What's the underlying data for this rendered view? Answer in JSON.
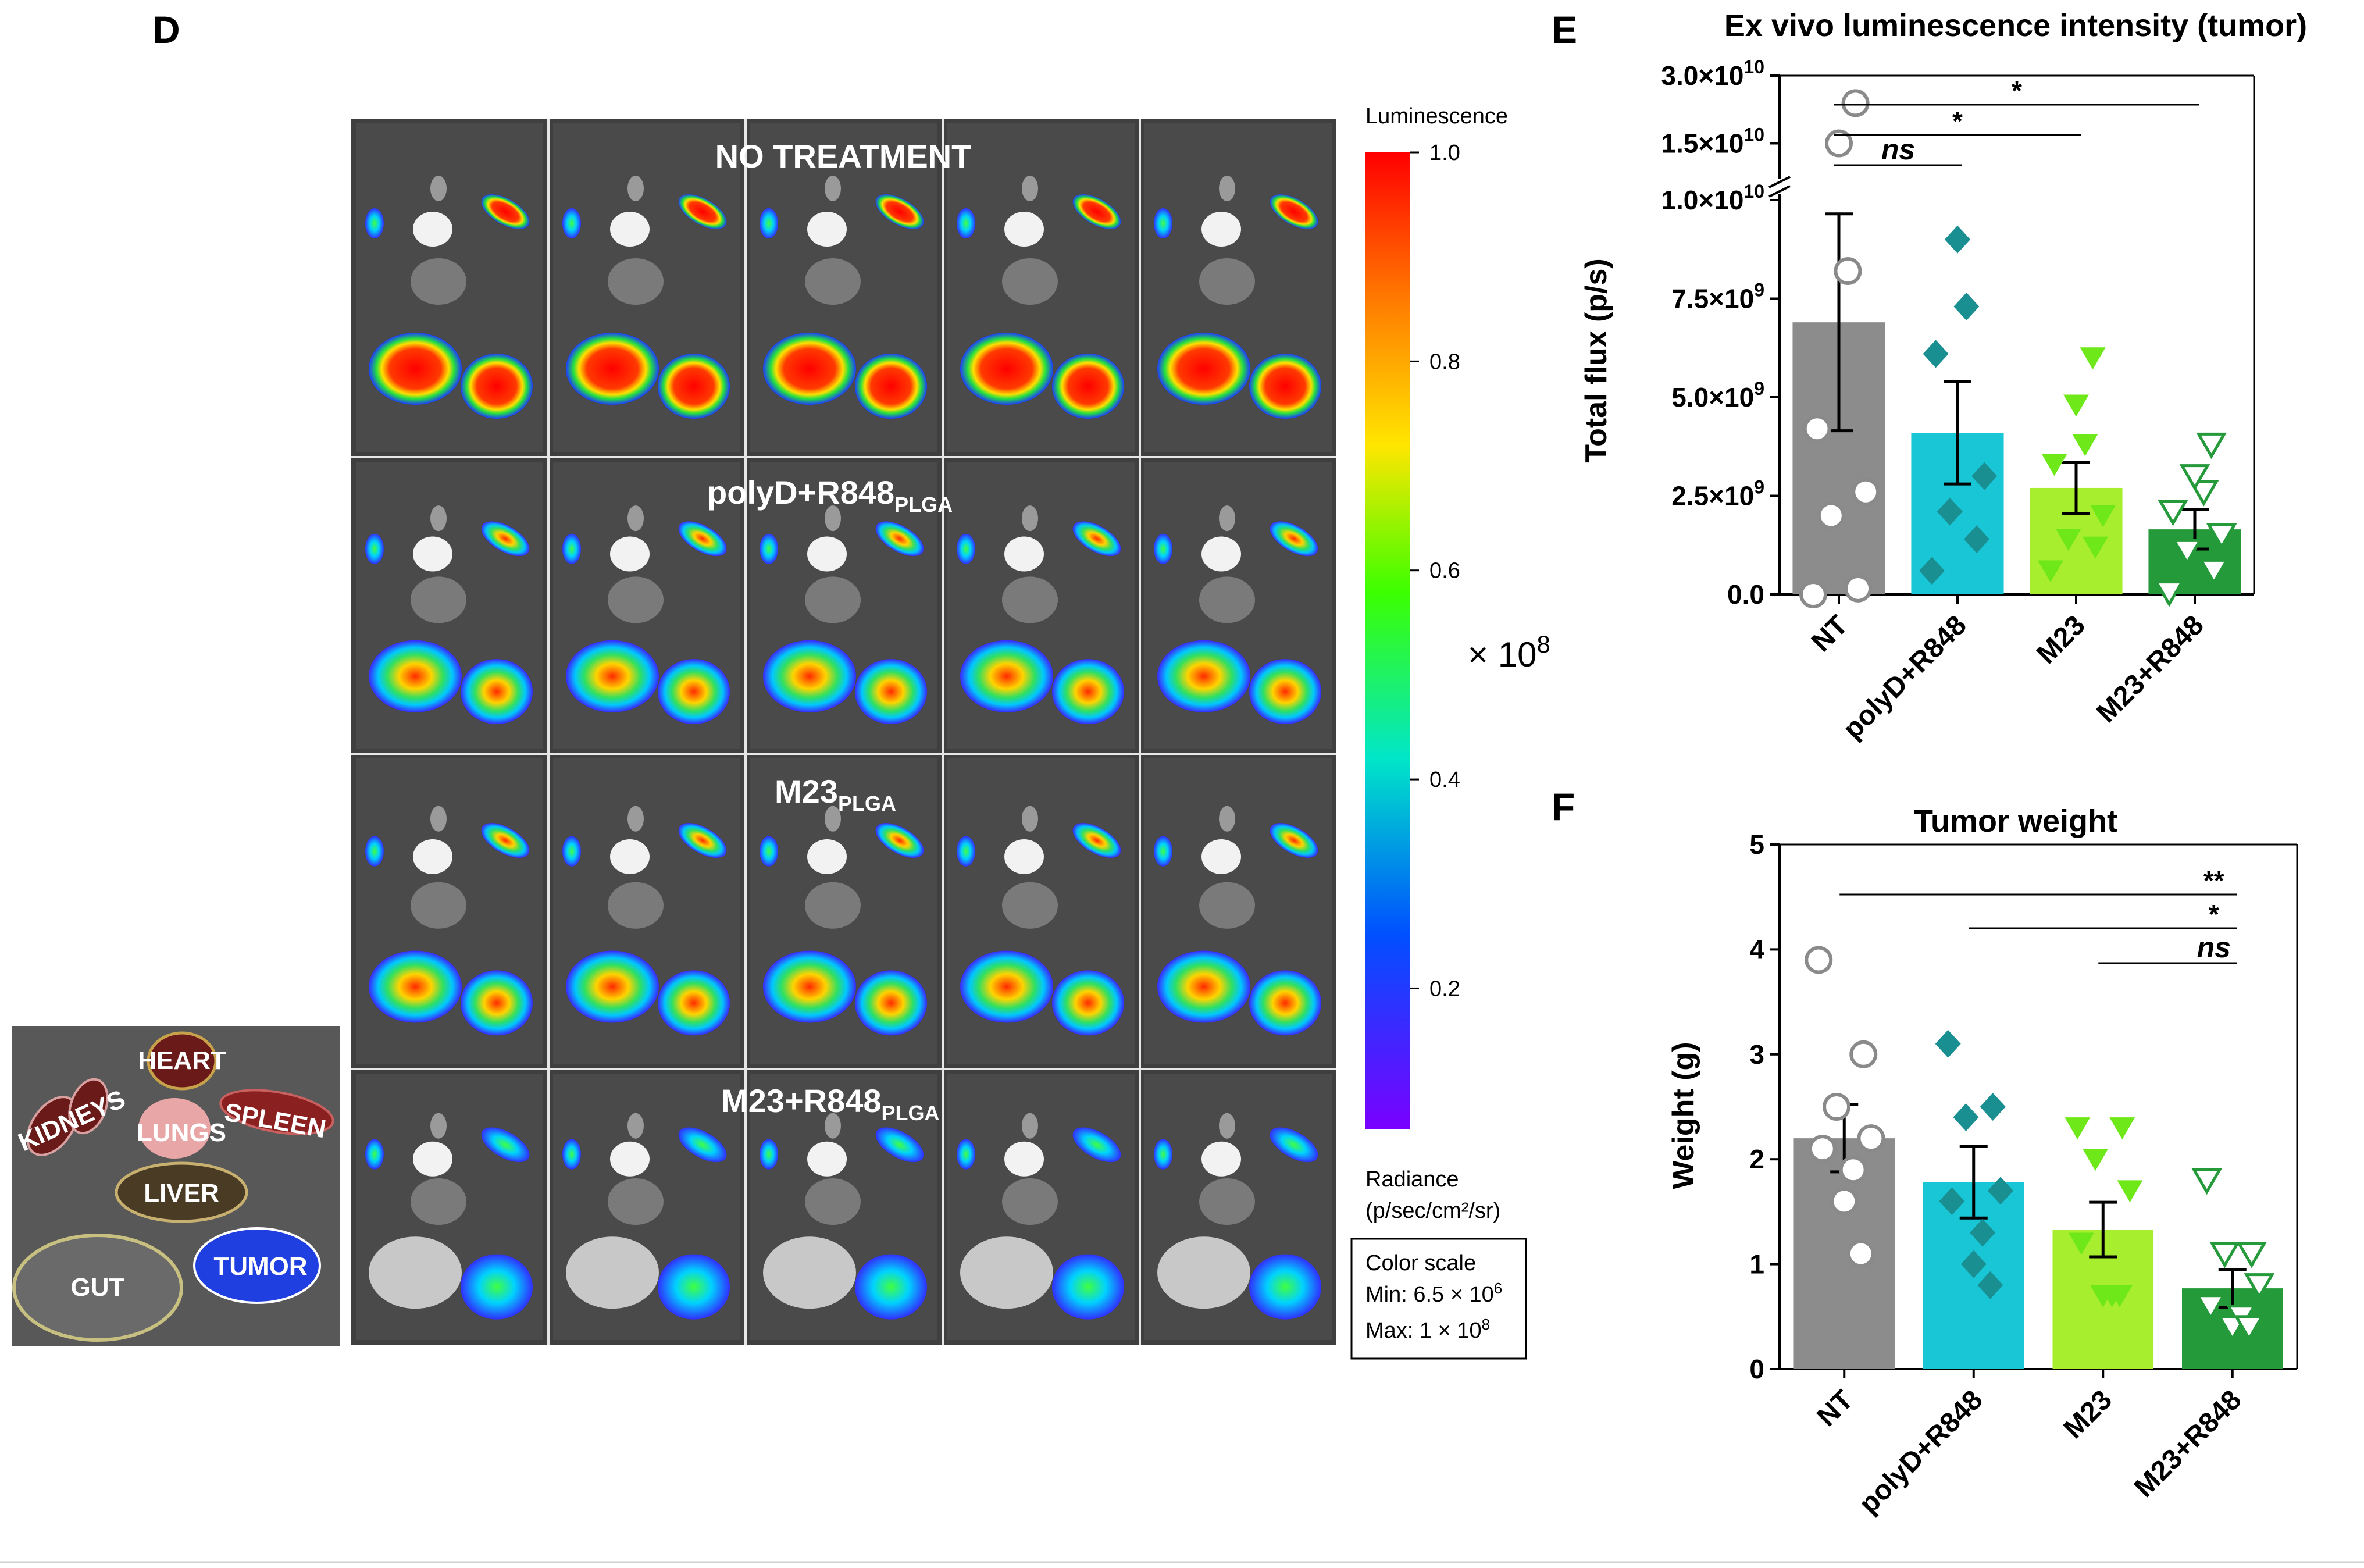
{
  "panels": {
    "d": "D",
    "e": "E",
    "f": "F"
  },
  "imaging": {
    "rows": [
      {
        "title": "NO TREATMENT",
        "title_main": "NO TREATMENT",
        "title_sub": ""
      },
      {
        "title": "polyD+R848PLGA",
        "title_main": "polyD+R848",
        "title_sub": "PLGA"
      },
      {
        "title": "M23PLGA",
        "title_main": "M23",
        "title_sub": "PLGA"
      },
      {
        "title": "M23+R848PLGA",
        "title_main": "M23+R848",
        "title_sub": "PLGA"
      }
    ],
    "scale": {
      "title": "Luminescence",
      "ticks": [
        "1.0",
        "0.8",
        "0.6",
        "0.4",
        "0.2"
      ],
      "multiplier": "× 10",
      "multiplier_exp": "8",
      "units_line1": "Radiance",
      "units_line2": "(p/sec/cm²/sr)",
      "box_title": "Color scale",
      "box_min": "Min: 6.5 × 10",
      "box_min_exp": "6",
      "box_max": "Max: 1 × 10",
      "box_max_exp": "8"
    }
  },
  "legend": {
    "heart": "HEART",
    "kidneys": "KIDNEYS",
    "lungs": "LUNGS",
    "spleen": "SPLEEN",
    "liver": "LIVER",
    "gut": "GUT",
    "tumor": "TUMOR"
  },
  "chart_data": [
    {
      "type": "bar",
      "title": "Ex vivo luminescence intensity (tumor)",
      "ylabel": "Total flux (p/s)",
      "xlabel": "",
      "categories": [
        "NT",
        "polyD+R848",
        "M23",
        "M23+R848"
      ],
      "means": [
        6900000000.0,
        4100000000.0,
        2700000000.0,
        1650000000.0
      ],
      "sem": [
        2750000000.0,
        1300000000.0,
        650000000.0,
        500000000.0
      ],
      "points": [
        [
          0,
          150000000.0,
          2000000000.0,
          2600000000.0,
          4200000000.0,
          8200000000.0,
          15000000000.0,
          23000000000.0
        ],
        [
          600000000.0,
          1400000000.0,
          2100000000.0,
          3000000000.0,
          6100000000.0,
          7300000000.0,
          9000000000.0
        ],
        [
          600000000.0,
          1200000000.0,
          1400000000.0,
          2000000000.0,
          3300000000.0,
          3800000000.0,
          4800000000.0,
          6000000000.0
        ],
        [
          50000000.0,
          600000000.0,
          1100000000.0,
          1500000000.0,
          2100000000.0,
          2600000000.0,
          3000000000.0,
          3800000000.0
        ]
      ],
      "y_ticks": [
        "0.0",
        "2.5×10",
        "5.0×10",
        "7.5×10",
        "1.0×10",
        "1.5×10",
        "3.0×10"
      ],
      "y_tick_exps": [
        "",
        "9",
        "9",
        "9",
        "10",
        "10",
        "10"
      ],
      "ylim_lower": [
        0,
        10000000000.0
      ],
      "ylim_upper": [
        10000000000.0,
        30000000000.0
      ],
      "significance": [
        {
          "from": "NT",
          "to": "M23+R848",
          "label": "*"
        },
        {
          "from": "NT",
          "to": "M23",
          "label": "*"
        },
        {
          "from": "NT",
          "to": "polyD+R848",
          "label": "ns"
        }
      ]
    },
    {
      "type": "bar",
      "title": "Tumor weight",
      "ylabel": "Weight (g)",
      "xlabel": "",
      "categories": [
        "NT",
        "polyD+R848",
        "M23",
        "M23+R848"
      ],
      "means": [
        2.2,
        1.78,
        1.33,
        0.77
      ],
      "sem": [
        0.32,
        0.34,
        0.26,
        0.18
      ],
      "points": [
        [
          3.9,
          3.0,
          2.5,
          2.2,
          2.1,
          1.9,
          1.6,
          1.1
        ],
        [
          3.1,
          2.5,
          2.4,
          1.7,
          1.6,
          1.3,
          1.0,
          0.8
        ],
        [
          2.3,
          2.3,
          2.0,
          1.7,
          1.2,
          0.7,
          0.7,
          0.7
        ],
        [
          1.8,
          1.1,
          1.1,
          0.8,
          0.6,
          0.5,
          0.4,
          0.4
        ]
      ],
      "y_ticks": [
        "0",
        "1",
        "2",
        "3",
        "4",
        "5"
      ],
      "ylim": [
        0,
        5
      ],
      "significance": [
        {
          "from": "NT",
          "to": "M23+R848",
          "label": "**"
        },
        {
          "from": "polyD+R848",
          "to": "M23+R848",
          "label": "*"
        },
        {
          "from": "M23",
          "to": "M23+R848",
          "label": "ns"
        }
      ]
    }
  ],
  "colors": {
    "NT": "#8c8c8c",
    "polyD+R848": "#19c6d6",
    "M23": "#a6ee2e",
    "M23+R848": "#259a3b",
    "marker_NT": "#ffffff",
    "marker_polyD": "#1a8f92",
    "marker_M23": "#6fe81a",
    "marker_M23R": "#ffffff"
  }
}
